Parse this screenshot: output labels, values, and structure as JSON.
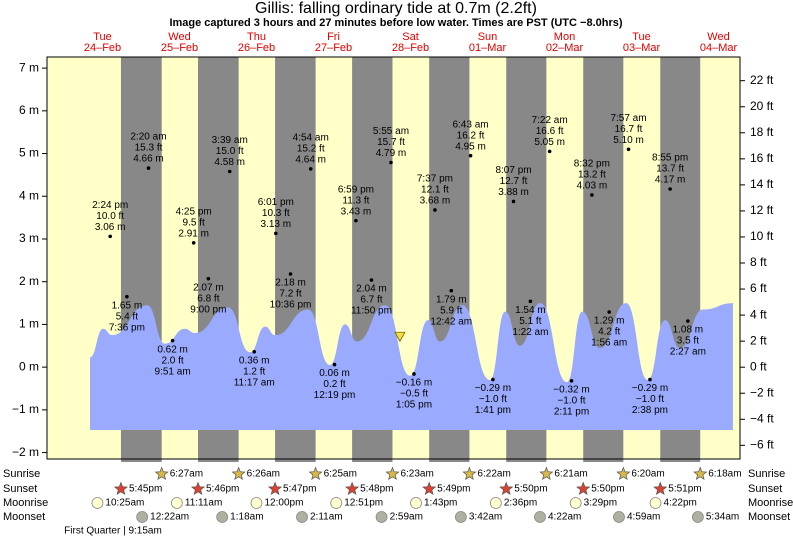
{
  "chart_data": {
    "type": "tide",
    "title": "Gillis: falling  ordinary tide at 0.7m (2.2ft)",
    "subtitle": "Image captured 3 hours and 27 minutes before low water. Times are PST (UTC −8.0hrs)",
    "xlim": [
      -5.3,
      210.7
    ],
    "ylim": [
      -2.15,
      7.26
    ],
    "y2lim": [
      -7.05,
      23.82
    ],
    "yticks": [
      {
        "value": -2,
        "label": "−2 m"
      },
      {
        "value": -1,
        "label": "−1 m"
      },
      {
        "value": 0,
        "label": "0 m"
      },
      {
        "value": 1,
        "label": "1 m"
      },
      {
        "value": 2,
        "label": "2 m"
      },
      {
        "value": 3,
        "label": "3 m"
      },
      {
        "value": 4,
        "label": "4 m"
      },
      {
        "value": 5,
        "label": "5 m"
      },
      {
        "value": 6,
        "label": "6 m"
      },
      {
        "value": 7,
        "label": "7 m"
      }
    ],
    "y2ticks": [
      {
        "value": -6,
        "label": "−6 ft"
      },
      {
        "value": -4,
        "label": "−4 ft"
      },
      {
        "value": -2,
        "label": "−2 ft"
      },
      {
        "value": 0,
        "label": "0 ft"
      },
      {
        "value": 2,
        "label": "2 ft"
      },
      {
        "value": 4,
        "label": "4 ft"
      },
      {
        "value": 6,
        "label": "6 ft"
      },
      {
        "value": 8,
        "label": "8 ft"
      },
      {
        "value": 10,
        "label": "10 ft"
      },
      {
        "value": 12,
        "label": "12 ft"
      },
      {
        "value": 14,
        "label": "14 ft"
      },
      {
        "value": 16,
        "label": "16 ft"
      },
      {
        "value": 18,
        "label": "18 ft"
      },
      {
        "value": 20,
        "label": "20 ft"
      },
      {
        "value": 22,
        "label": "22 ft"
      }
    ],
    "curve": {
      "color": "#9aabff",
      "x": [
        8.1,
        12.2,
        15.0,
        25.9,
        31.5,
        37.7,
        40.8,
        51.1,
        58.0,
        62.7,
        65.8,
        76.1,
        82.9,
        87.6,
        91.3,
        100.1,
        107.9,
        113.5,
        117.2,
        124.1,
        132.8,
        137.5,
        142.1,
        148.4,
        156.8,
        161.5,
        167.1,
        175.2,
        182.0,
        187.3,
        192.0,
        199.2,
        208.5
      ],
      "values": [
        0.23,
        0.9,
        0.75,
        1.45,
        0.55,
        0.9,
        0.8,
        1.4,
        0.35,
        0.95,
        0.75,
        1.35,
        0.05,
        1.0,
        0.6,
        1.45,
        -0.2,
        1.1,
        0.6,
        1.45,
        -0.3,
        1.3,
        0.5,
        1.5,
        -0.35,
        1.3,
        0.45,
        1.5,
        -0.3,
        1.1,
        0.45,
        1.35,
        1.5
      ]
    },
    "now": {
      "x": 104.7,
      "value": 0.7
    },
    "row_labels": [
      "Sunrise",
      "Sunset",
      "Moonrise",
      "Moonset"
    ],
    "moon_phase": "First Quarter | 9:15am",
    "days": [
      {
        "weekday": "Tue",
        "date": "24‒Feb",
        "sunrise": null,
        "sunset": "5:45pm",
        "moonrise": "10:25am",
        "moonset": null,
        "tides": [
          {
            "time": "2:24 pm",
            "ft": "10.0 ft",
            "value": 3.06,
            "value_label": "3.06 m"
          },
          {
            "time": "7:36 pm",
            "ft": "5.4 ft",
            "value": 1.65,
            "value_label": "1.65 m"
          }
        ]
      },
      {
        "weekday": "Wed",
        "date": "25‒Feb",
        "sunrise": "6:27am",
        "sunset": "5:46pm",
        "moonrise": "11:11am",
        "moonset": "12:22am",
        "tides": [
          {
            "time": "2:20 am",
            "ft": "15.3 ft",
            "value": 4.66,
            "value_label": "4.66 m"
          },
          {
            "time": "9:51 am",
            "ft": "2.0 ft",
            "value": 0.62,
            "value_label": "0.62 m"
          },
          {
            "time": "4:25 pm",
            "ft": "9.5 ft",
            "value": 2.91,
            "value_label": "2.91 m"
          },
          {
            "time": "9:00 pm",
            "ft": "6.8 ft",
            "value": 2.07,
            "value_label": "2.07 m"
          }
        ]
      },
      {
        "weekday": "Thu",
        "date": "26‒Feb",
        "sunrise": "6:26am",
        "sunset": "5:47pm",
        "moonrise": "12:00pm",
        "moonset": "1:18am",
        "tides": [
          {
            "time": "3:39 am",
            "ft": "15.0 ft",
            "value": 4.58,
            "value_label": "4.58 m"
          },
          {
            "time": "11:17 am",
            "ft": "1.2 ft",
            "value": 0.36,
            "value_label": "0.36 m"
          },
          {
            "time": "6:01 pm",
            "ft": "10.3 ft",
            "value": 3.13,
            "value_label": "3.13 m"
          },
          {
            "time": "10:36 pm",
            "ft": "7.2 ft",
            "value": 2.18,
            "value_label": "2.18 m"
          }
        ]
      },
      {
        "weekday": "Fri",
        "date": "27‒Feb",
        "sunrise": "6:25am",
        "sunset": "5:48pm",
        "moonrise": "12:51pm",
        "moonset": "2:11am",
        "tides": [
          {
            "time": "4:54 am",
            "ft": "15.2 ft",
            "value": 4.64,
            "value_label": "4.64 m"
          },
          {
            "time": "12:19 pm",
            "ft": "0.2 ft",
            "value": 0.06,
            "value_label": "0.06 m"
          },
          {
            "time": "6:59 pm",
            "ft": "11.3 ft",
            "value": 3.43,
            "value_label": "3.43 m"
          },
          {
            "time": "11:50 pm",
            "ft": "6.7 ft",
            "value": 2.04,
            "value_label": "2.04 m"
          }
        ]
      },
      {
        "weekday": "Sat",
        "date": "28‒Feb",
        "sunrise": "6:23am",
        "sunset": "5:49pm",
        "moonrise": "1:43pm",
        "moonset": "2:59am",
        "tides": [
          {
            "time": "5:55 am",
            "ft": "15.7 ft",
            "value": 4.79,
            "value_label": "4.79 m"
          },
          {
            "time": "1:05 pm",
            "ft": "−0.5 ft",
            "value": -0.16,
            "value_label": "−0.16 m"
          },
          {
            "time": "7:37 pm",
            "ft": "12.1 ft",
            "value": 3.68,
            "value_label": "3.68 m"
          }
        ]
      },
      {
        "weekday": "Sun",
        "date": "01‒Mar",
        "sunrise": "6:22am",
        "sunset": "5:50pm",
        "moonrise": "2:36pm",
        "moonset": "3:42am",
        "tides": [
          {
            "time": "12:42 am",
            "ft": "5.9 ft",
            "value": 1.79,
            "value_label": "1.79 m"
          },
          {
            "time": "6:43 am",
            "ft": "16.2 ft",
            "value": 4.95,
            "value_label": "4.95 m"
          },
          {
            "time": "1:41 pm",
            "ft": "−1.0 ft",
            "value": -0.29,
            "value_label": "−0.29 m"
          },
          {
            "time": "8:07 pm",
            "ft": "12.7 ft",
            "value": 3.88,
            "value_label": "3.88 m"
          }
        ]
      },
      {
        "weekday": "Mon",
        "date": "02‒Mar",
        "sunrise": "6:21am",
        "sunset": "5:50pm",
        "moonrise": "3:29pm",
        "moonset": "4:22am",
        "tides": [
          {
            "time": "1:22 am",
            "ft": "5.1 ft",
            "value": 1.54,
            "value_label": "1.54 m"
          },
          {
            "time": "7:22 am",
            "ft": "16.6 ft",
            "value": 5.05,
            "value_label": "5.05 m"
          },
          {
            "time": "2:11 pm",
            "ft": "−1.0 ft",
            "value": -0.32,
            "value_label": "−0.32 m"
          },
          {
            "time": "8:32 pm",
            "ft": "13.2 ft",
            "value": 4.03,
            "value_label": "4.03 m"
          }
        ]
      },
      {
        "weekday": "Tue",
        "date": "03‒Mar",
        "sunrise": "6:20am",
        "sunset": "5:51pm",
        "moonrise": "4:22pm",
        "moonset": "4:59am",
        "tides": [
          {
            "time": "1:56 am",
            "ft": "4.2 ft",
            "value": 1.29,
            "value_label": "1.29 m"
          },
          {
            "time": "7:57 am",
            "ft": "16.7 ft",
            "value": 5.1,
            "value_label": "5.10 m"
          },
          {
            "time": "2:38 pm",
            "ft": "−1.0 ft",
            "value": -0.29,
            "value_label": "−0.29 m"
          },
          {
            "time": "8:55 pm",
            "ft": "13.7 ft",
            "value": 4.17,
            "value_label": "4.17 m"
          }
        ]
      },
      {
        "weekday": "Wed",
        "date": "04‒Mar",
        "sunrise": "6:18am",
        "sunset": null,
        "moonrise": null,
        "moonset": "5:34am",
        "tides": [
          {
            "time": "2:27 am",
            "ft": "3.5 ft",
            "value": 1.08,
            "value_label": "1.08 m"
          }
        ]
      }
    ]
  }
}
